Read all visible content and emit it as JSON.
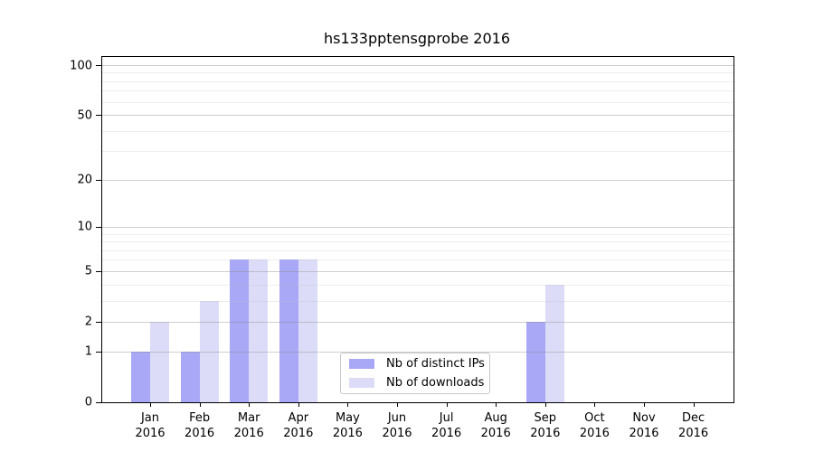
{
  "chart_data": {
    "type": "bar",
    "title": "hs133pptensgprobe 2016",
    "categories": [
      "Jan",
      "Feb",
      "Mar",
      "Apr",
      "May",
      "Jun",
      "Jul",
      "Aug",
      "Sep",
      "Oct",
      "Nov",
      "Dec"
    ],
    "xtick_labels": [
      "Jan\n2016",
      "Feb\n2016",
      "Mar\n2016",
      "Apr\n2016",
      "May\n2016",
      "Jun\n2016",
      "Jul\n2016",
      "Aug\n2016",
      "Sep\n2016",
      "Oct\n2016",
      "Nov\n2016",
      "Dec\n2016"
    ],
    "series": [
      {
        "name": "Nb of distinct IPs",
        "color": "#a8a8f6",
        "values": [
          1,
          1,
          6,
          6,
          0,
          0,
          0,
          0,
          2,
          0,
          0,
          0
        ]
      },
      {
        "name": "Nb of downloads",
        "color": "#dcdcf9",
        "values": [
          2,
          3,
          6,
          6,
          0,
          0,
          0,
          0,
          4,
          0,
          0,
          0
        ]
      }
    ],
    "yscale": "log1p",
    "ylim": [
      0,
      100
    ],
    "yticks": [
      0,
      1,
      2,
      5,
      10,
      20,
      50,
      100
    ],
    "minor_yticks": [
      3,
      4,
      6,
      7,
      8,
      9,
      30,
      40,
      60,
      70,
      80,
      90
    ],
    "grid": true,
    "grid_on_top": true,
    "legend_position": "inside-bottom-center",
    "axis_color": "#000000",
    "major_grid_color": "#c9c9c9",
    "minor_grid_color": "#e9e9e9"
  }
}
